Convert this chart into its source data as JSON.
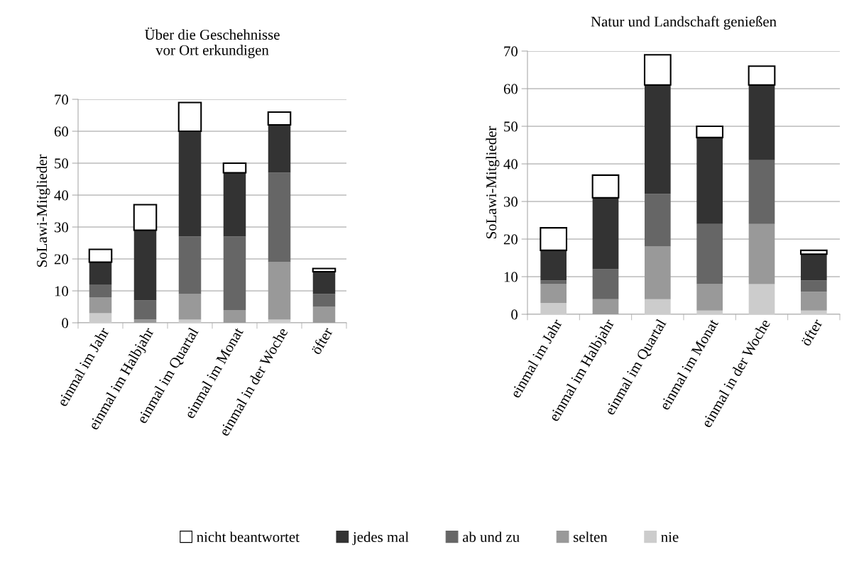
{
  "chart_data": [
    {
      "type": "bar",
      "stacked": true,
      "title": "Über die Geschehnisse\nvor Ort erkundigen",
      "ylabel": "SoLawi-Mitglieder",
      "categories": [
        "einmal im Jahr",
        "einmal im Halbjahr",
        "einmal im Quartal",
        "einmal im Monat",
        "einmal in der Woche",
        "öfter"
      ],
      "ylim": [
        0,
        70
      ],
      "yticks": [
        0,
        10,
        20,
        30,
        40,
        50,
        60,
        70
      ],
      "grid": "y",
      "legend": "bottom",
      "series": [
        {
          "name": "nie",
          "color": "#cccccc",
          "values": [
            3,
            0,
            1,
            0,
            1,
            0
          ]
        },
        {
          "name": "selten",
          "color": "#999999",
          "values": [
            5,
            1,
            8,
            4,
            18,
            5
          ]
        },
        {
          "name": "ab und zu",
          "color": "#666666",
          "values": [
            4,
            6,
            18,
            23,
            28,
            4
          ]
        },
        {
          "name": "jedes mal",
          "color": "#333333",
          "values": [
            7,
            22,
            33,
            20,
            15,
            7
          ]
        },
        {
          "name": "nicht beantwortet",
          "color": "#ffffff",
          "values": [
            4,
            8,
            9,
            3,
            4,
            1
          ]
        }
      ]
    },
    {
      "type": "bar",
      "stacked": true,
      "title": "Natur und Landschaft genießen",
      "ylabel": "SoLawi-Mitglieder",
      "categories": [
        "einmal im Jahr",
        "einmal im Halbjahr",
        "einmal im Quartal",
        "einmal im Monat",
        "einmal in der Woche",
        "öfter"
      ],
      "ylim": [
        0,
        70
      ],
      "yticks": [
        0,
        10,
        20,
        30,
        40,
        50,
        60,
        70
      ],
      "grid": "y",
      "legend": "bottom",
      "series": [
        {
          "name": "nie",
          "color": "#cccccc",
          "values": [
            3,
            0,
            4,
            1,
            8,
            1
          ]
        },
        {
          "name": "selten",
          "color": "#999999",
          "values": [
            5,
            4,
            14,
            7,
            16,
            5
          ]
        },
        {
          "name": "ab und zu",
          "color": "#666666",
          "values": [
            1,
            8,
            14,
            16,
            17,
            3
          ]
        },
        {
          "name": "jedes mal",
          "color": "#333333",
          "values": [
            8,
            19,
            29,
            23,
            20,
            7
          ]
        },
        {
          "name": "nicht beantwortet",
          "color": "#ffffff",
          "values": [
            6,
            6,
            8,
            3,
            5,
            1
          ]
        }
      ]
    }
  ]
}
